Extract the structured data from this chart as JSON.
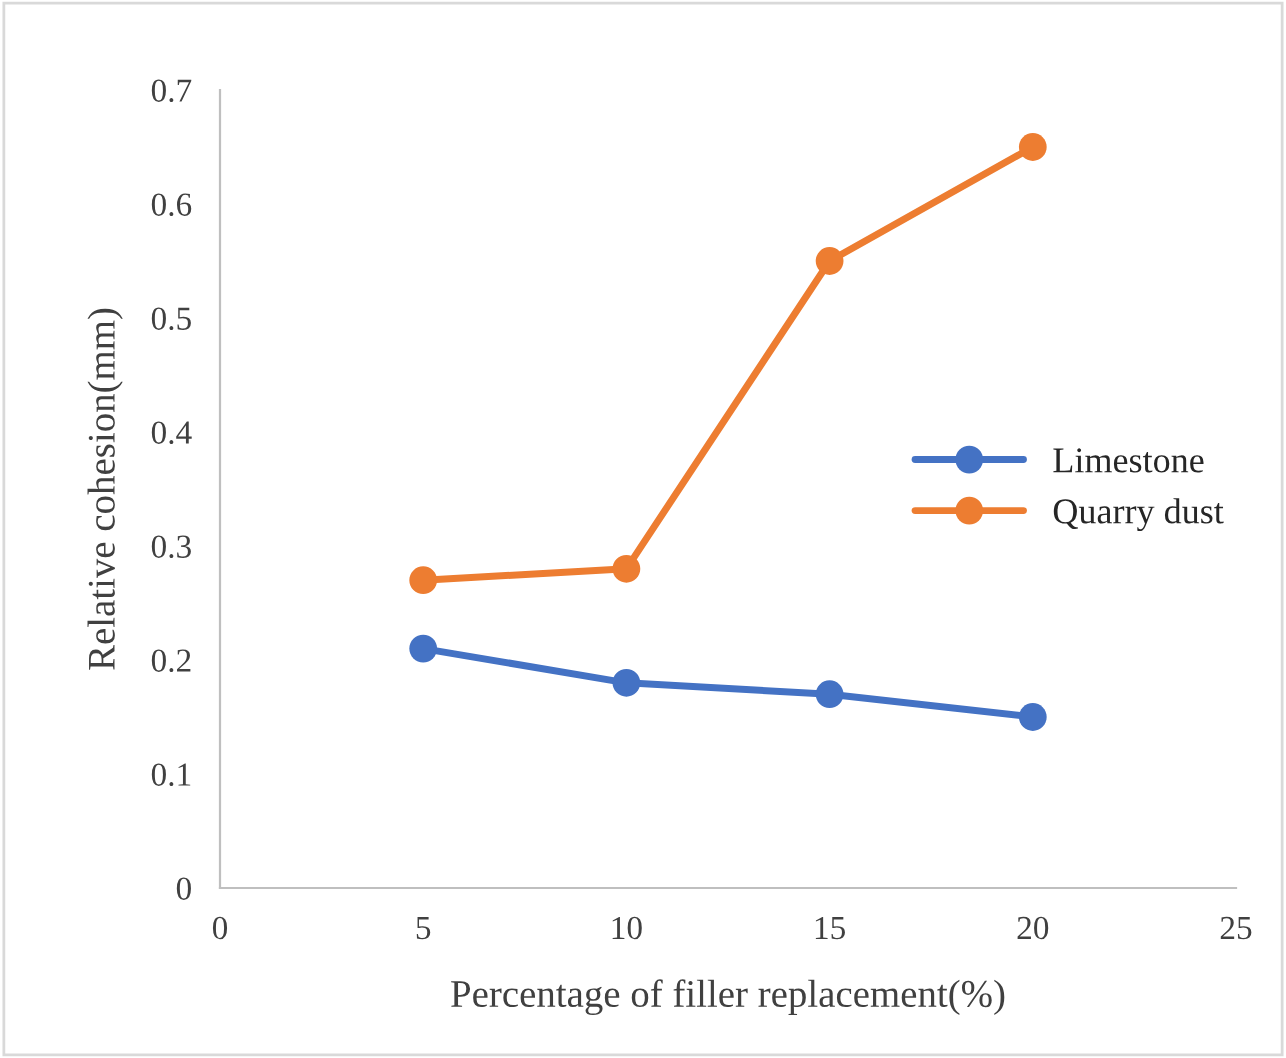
{
  "chart_data": {
    "type": "line",
    "xlabel": "Percentage of filler replacement(%)",
    "ylabel": "Relative cohesion(mm)",
    "x": [
      5,
      10,
      15,
      20
    ],
    "series": [
      {
        "name": "Limestone",
        "color": "#4472c4",
        "values": [
          0.21,
          0.18,
          0.17,
          0.15
        ]
      },
      {
        "name": "Quarry dust",
        "color": "#ed7d31",
        "values": [
          0.27,
          0.28,
          0.55,
          0.65
        ]
      }
    ],
    "xlim": [
      0,
      25
    ],
    "xticks": [
      0,
      5,
      10,
      15,
      20,
      25
    ],
    "ylim": [
      0,
      0.7
    ],
    "yticks": [
      0,
      0.1,
      0.2,
      0.3,
      0.4,
      0.5,
      0.6,
      0.7
    ],
    "grid": false,
    "legend": "right",
    "marker": "circle",
    "line_style": "solid"
  }
}
